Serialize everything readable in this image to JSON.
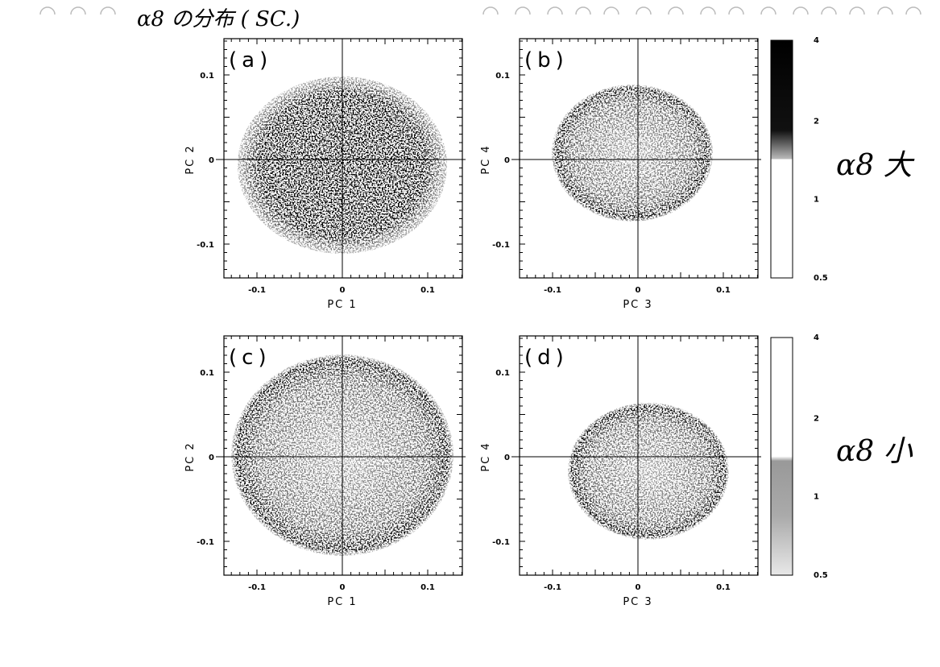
{
  "header": {
    "note": "α8 の分布 ( SC.)"
  },
  "panels": [
    {
      "label": "(a)",
      "xlabel": "PC 1",
      "ylabel": "PC 2",
      "xticks": [
        "-0.1",
        "0",
        "0.1"
      ],
      "yticks": [
        "0.1",
        "0",
        "-0.1"
      ]
    },
    {
      "label": "(b)",
      "xlabel": "PC 3",
      "ylabel": "PC 4",
      "xticks": [
        "-0.1",
        "0",
        "0.1"
      ],
      "yticks": [
        "0.1",
        "0",
        "-0.1"
      ]
    },
    {
      "label": "(c)",
      "xlabel": "PC 1",
      "ylabel": "PC 2",
      "xticks": [
        "-0.1",
        "0",
        "0.1"
      ],
      "yticks": [
        "0.1",
        "0",
        "-0.1"
      ]
    },
    {
      "label": "(d)",
      "xlabel": "PC 3",
      "ylabel": "PC 4",
      "xticks": [
        "-0.1",
        "0",
        "0.1"
      ],
      "yticks": [
        "0.1",
        "0",
        "-0.1"
      ]
    }
  ],
  "colorbars": [
    {
      "ticks": [
        "4",
        "2",
        "1",
        "0.5"
      ],
      "note": "α8 大"
    },
    {
      "ticks": [
        "4",
        "2",
        "1",
        "0.5"
      ],
      "note": "α8 小"
    }
  ]
}
